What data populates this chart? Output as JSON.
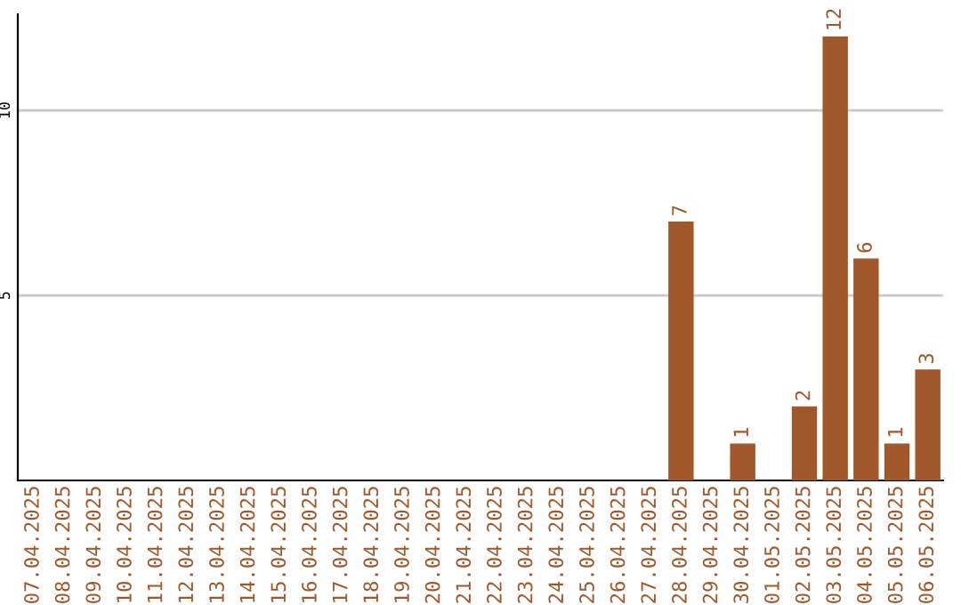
{
  "chart_data": {
    "type": "bar",
    "categories": [
      "07.04.2025",
      "08.04.2025",
      "09.04.2025",
      "10.04.2025",
      "11.04.2025",
      "12.04.2025",
      "13.04.2025",
      "14.04.2025",
      "15.04.2025",
      "16.04.2025",
      "17.04.2025",
      "18.04.2025",
      "19.04.2025",
      "20.04.2025",
      "21.04.2025",
      "22.04.2025",
      "23.04.2025",
      "24.04.2025",
      "25.04.2025",
      "26.04.2025",
      "27.04.2025",
      "28.04.2025",
      "29.04.2025",
      "30.04.2025",
      "01.05.2025",
      "02.05.2025",
      "03.05.2025",
      "04.05.2025",
      "05.05.2025",
      "06.05.2025"
    ],
    "values": [
      0,
      0,
      0,
      0,
      0,
      0,
      0,
      0,
      0,
      0,
      0,
      0,
      0,
      0,
      0,
      0,
      0,
      0,
      0,
      0,
      0,
      7,
      0,
      1,
      0,
      2,
      12,
      6,
      1,
      3
    ],
    "value_labels": [
      null,
      null,
      null,
      null,
      null,
      null,
      null,
      null,
      null,
      null,
      null,
      null,
      null,
      null,
      null,
      null,
      null,
      null,
      null,
      null,
      null,
      "7",
      null,
      "1",
      null,
      "2",
      "12",
      "6",
      "1",
      "3"
    ],
    "color": "#a0582a",
    "ylim": [
      0,
      12.6
    ],
    "yticks": [
      5,
      10
    ],
    "grid": "y"
  }
}
